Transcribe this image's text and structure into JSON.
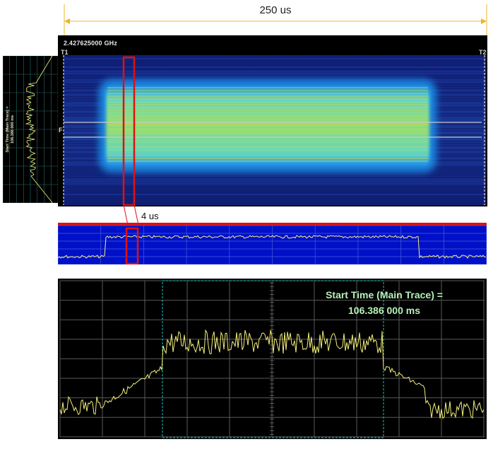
{
  "span_annotation": {
    "label": "250 us"
  },
  "spectrogram": {
    "frequency_readout": "2.427625000 GHz",
    "marker_left": "T1",
    "marker_right": "T2",
    "frequency_marker": "F"
  },
  "side_panel": {
    "caption_line1": "Start Time (Main Trace) =",
    "caption_line2": "106.386 000 ms"
  },
  "zoom_annotation": {
    "label": "4 us"
  },
  "main_trace": {
    "start_time_label": "Start Time (Main Trace) =",
    "start_time_value": "106.386 000 ms"
  },
  "colors": {
    "trace": "#f4f07a",
    "mini_background": "#0010c8",
    "highlight": "#e01010",
    "gate": "#19c3c8",
    "grid": "#555555"
  },
  "icons": [
    "vertical-grid",
    "marker-line"
  ]
}
